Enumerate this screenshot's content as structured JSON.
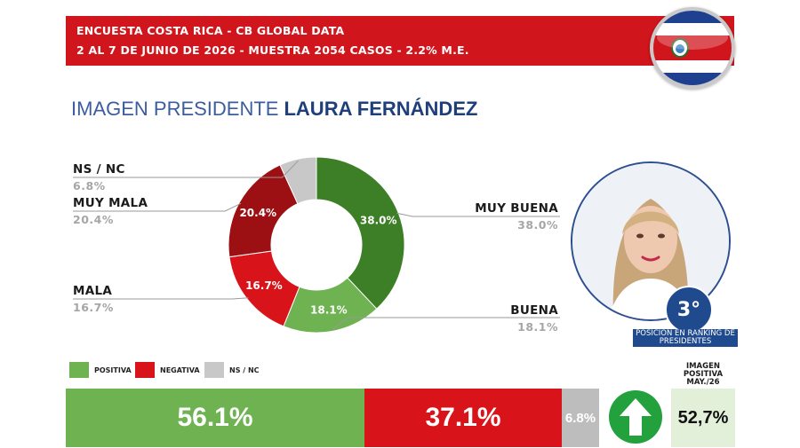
{
  "header": {
    "line1": "ENCUESTA COSTA RICA - CB GLOBAL DATA",
    "line2": "2 AL 7 DE JUNIO DE 2026 - MUESTRA 2054 CASOS - 2.2% M.E."
  },
  "title": {
    "prefix": "IMAGEN PRESIDENTE",
    "name": "LAURA FERNÁNDEZ"
  },
  "chart_data": {
    "type": "pie",
    "variant": "donut",
    "slices": [
      {
        "label": "MUY BUENA",
        "value": 38.0,
        "value_label": "38.0%",
        "color": "#3d7f27"
      },
      {
        "label": "BUENA",
        "value": 18.1,
        "value_label": "18.1%",
        "color": "#6fb252"
      },
      {
        "label": "MALA",
        "value": 16.7,
        "value_label": "16.7%",
        "color": "#d8141a"
      },
      {
        "label": "MUY MALA",
        "value": 20.4,
        "value_label": "20.4%",
        "color": "#9c0f12"
      },
      {
        "label": "NS / NC",
        "value": 6.8,
        "value_label": "6.8%",
        "color": "#c8c8c8"
      }
    ]
  },
  "legend": [
    {
      "label": "POSITIVA",
      "color": "#6fb252"
    },
    {
      "label": "NEGATIVA",
      "color": "#d8141a"
    },
    {
      "label": "NS / NC",
      "color": "#c8c8c8"
    }
  ],
  "summary_bar": [
    {
      "label": "56.1%",
      "value": 56.1,
      "color": "#6fb252"
    },
    {
      "label": "37.1%",
      "value": 37.1,
      "color": "#d8141a"
    },
    {
      "label": "6.8%",
      "value": 6.8,
      "color": "#bdbdbd"
    }
  ],
  "rank": {
    "number": "3°",
    "caption": "POSICIÓN EN RANKING DE PRESIDENTES"
  },
  "previous": {
    "heading": "IMAGEN POSITIVA MAY./26",
    "value": "52,7%"
  },
  "trend": {
    "icon": "arrow-up-icon",
    "color": "#22a13c"
  }
}
